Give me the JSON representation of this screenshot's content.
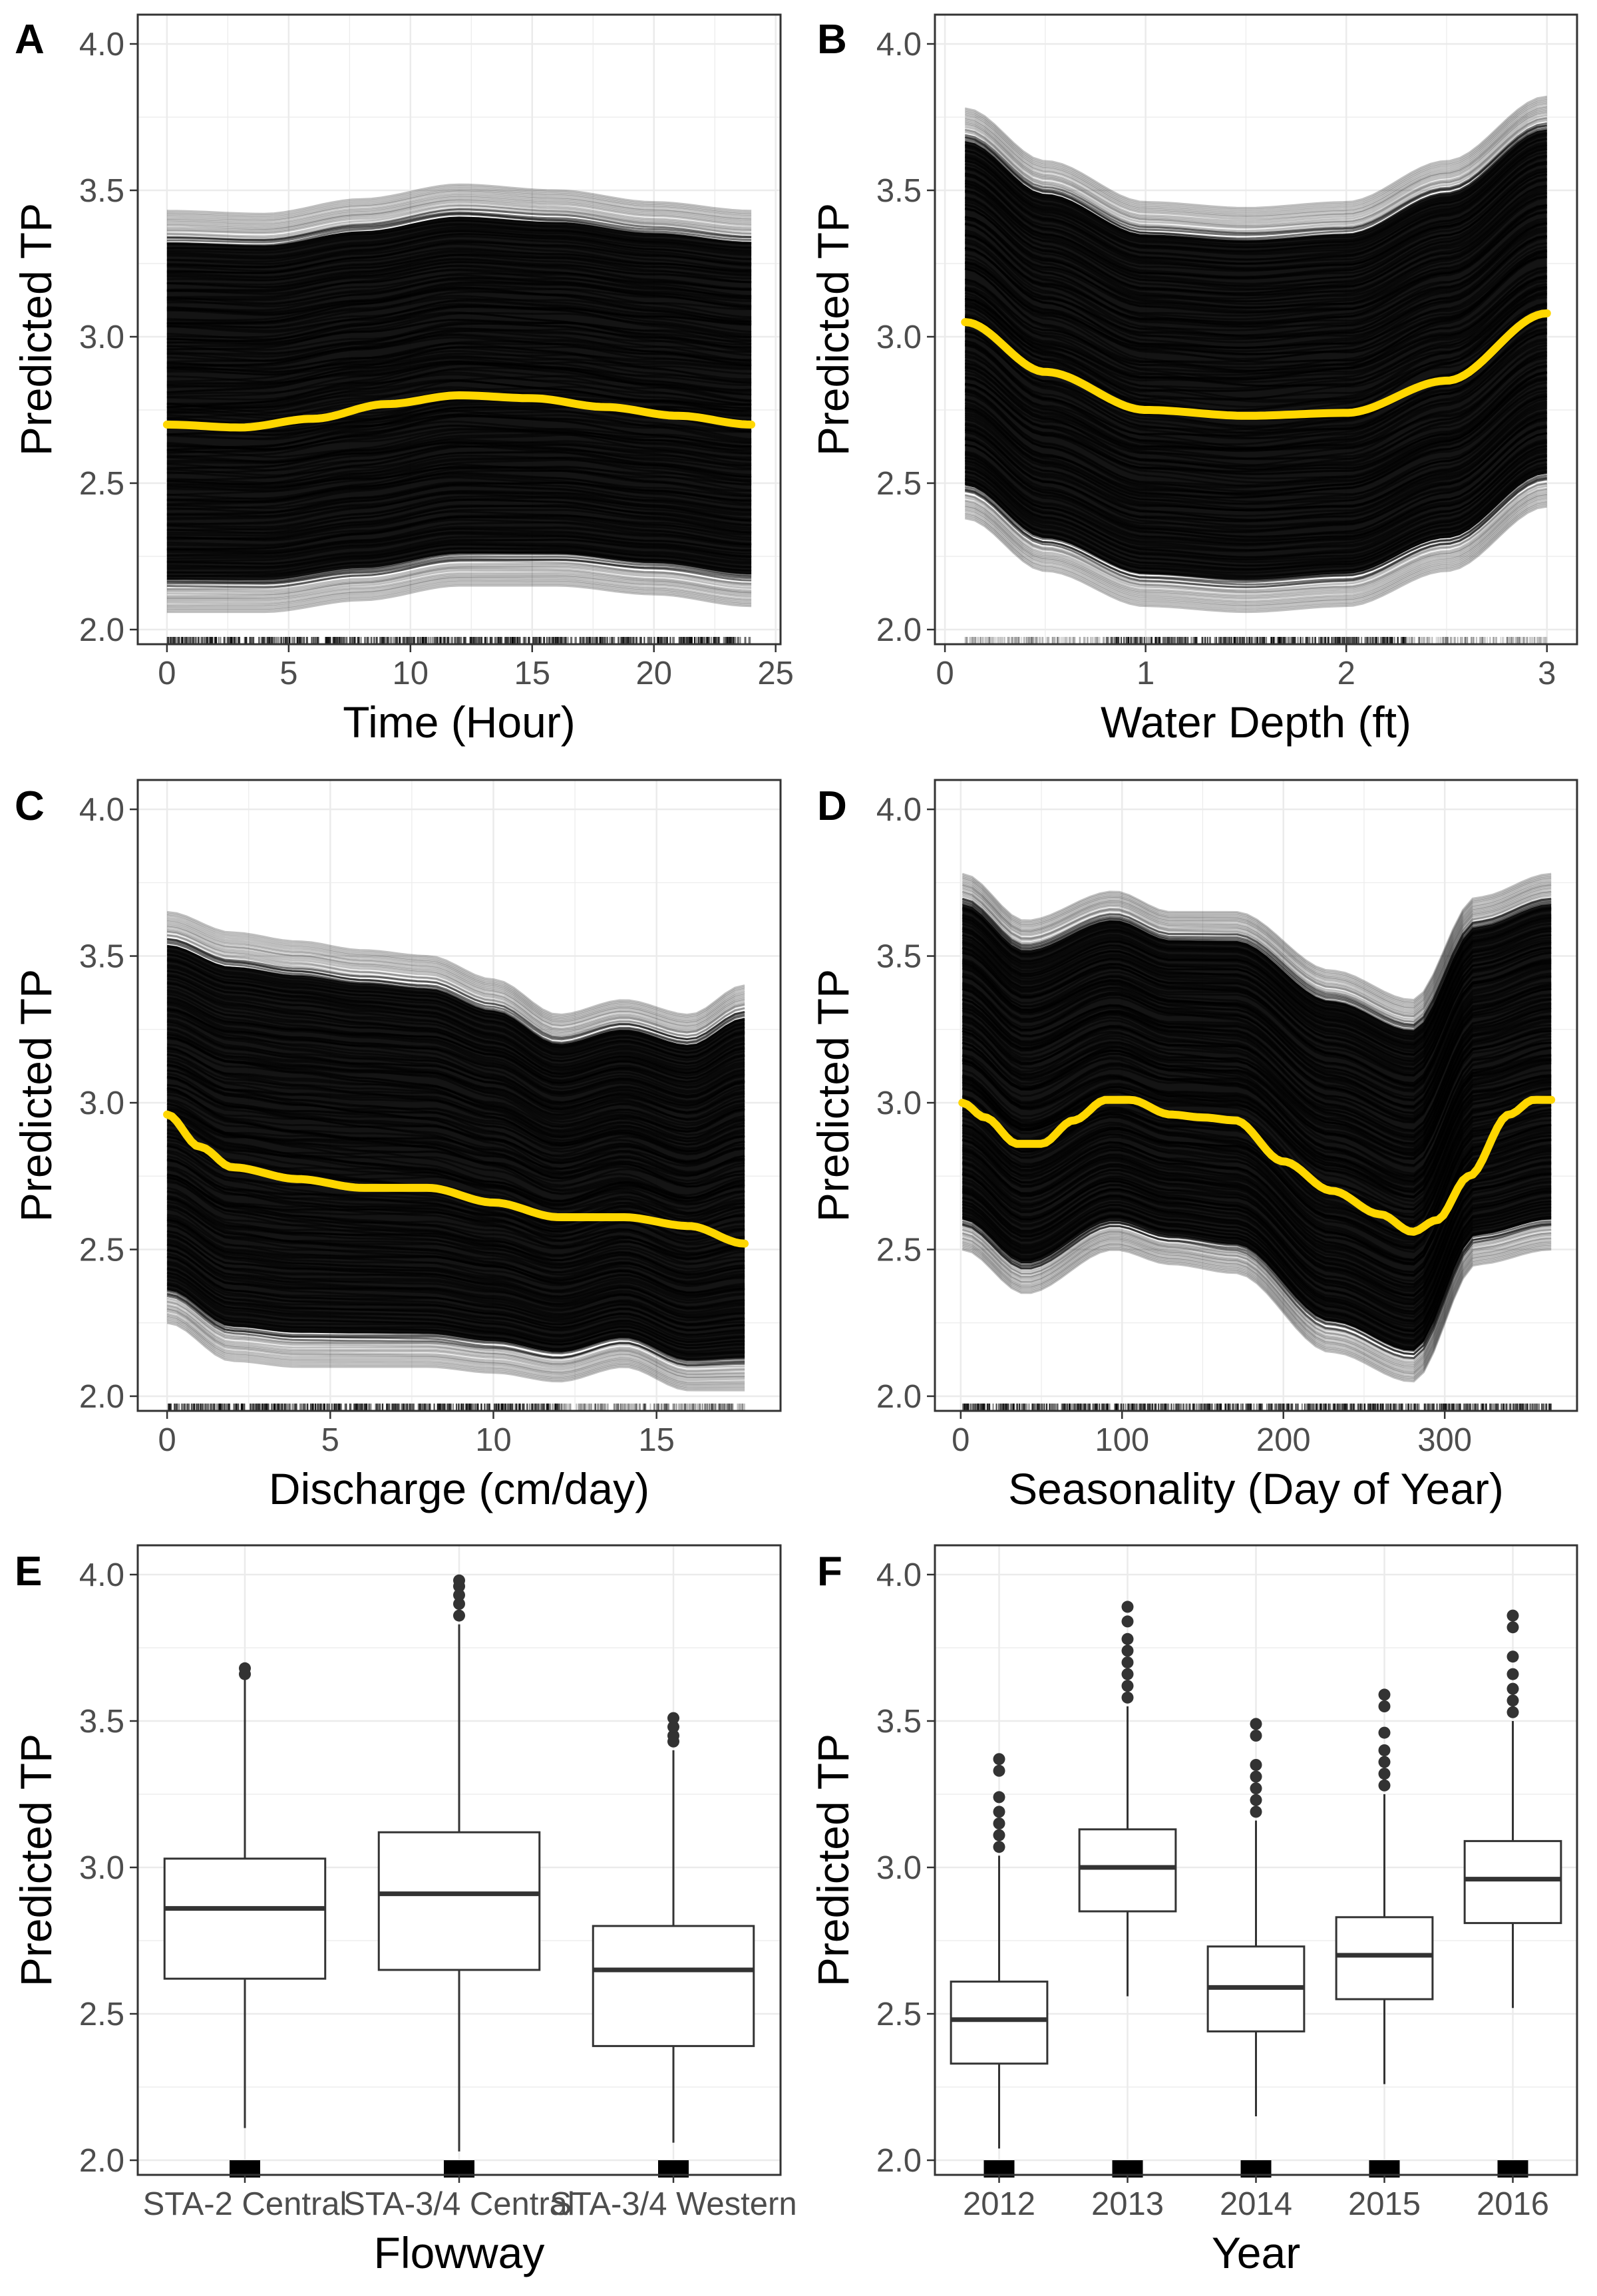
{
  "colors": {
    "pdp_line": "#FFD700",
    "ice_lines": "#000000",
    "grid": "#EBEBEB",
    "box_stroke": "#333333",
    "tick_text": "#4D4D4D"
  },
  "chart_data": [
    {
      "panel": "A",
      "type": "line",
      "xlabel": "Time (Hour)",
      "ylabel": "Predicted TP",
      "xlim": [
        -1.2,
        25.2
      ],
      "ylim": [
        1.95,
        4.1
      ],
      "xticks": [
        0,
        5,
        10,
        15,
        20,
        25
      ],
      "yticks": [
        2.0,
        2.5,
        3.0,
        3.5,
        4.0
      ],
      "ice_band": {
        "x": [
          0,
          4,
          8,
          12,
          16,
          20,
          24
        ],
        "lower": [
          2.06,
          2.06,
          2.1,
          2.15,
          2.15,
          2.12,
          2.08
        ],
        "upper": [
          3.43,
          3.42,
          3.47,
          3.52,
          3.5,
          3.46,
          3.43
        ]
      },
      "pdp": {
        "x": [
          0,
          3,
          6,
          9,
          12,
          15,
          18,
          21,
          24
        ],
        "y": [
          2.7,
          2.69,
          2.72,
          2.77,
          2.8,
          2.79,
          2.76,
          2.73,
          2.7
        ]
      },
      "rug": "dense over 0–24"
    },
    {
      "panel": "B",
      "type": "line",
      "xlabel": "Water Depth (ft)",
      "ylabel": "Predicted TP",
      "xlim": [
        -0.05,
        3.15
      ],
      "ylim": [
        1.95,
        4.1
      ],
      "xticks": [
        0,
        1,
        2,
        3
      ],
      "yticks": [
        2.0,
        2.5,
        3.0,
        3.5,
        4.0
      ],
      "ice_band": {
        "x": [
          0.1,
          0.5,
          1.0,
          1.5,
          2.0,
          2.5,
          3.0
        ],
        "lower": [
          2.38,
          2.2,
          2.08,
          2.06,
          2.08,
          2.2,
          2.42
        ],
        "upper": [
          3.78,
          3.6,
          3.46,
          3.44,
          3.46,
          3.6,
          3.82
        ]
      },
      "pdp": {
        "x": [
          0.1,
          0.5,
          1.0,
          1.5,
          2.0,
          2.5,
          3.0
        ],
        "y": [
          3.05,
          2.88,
          2.75,
          2.73,
          2.74,
          2.85,
          3.08
        ]
      },
      "rug": "sparse below 0.8, dense 0.8–2.3, sparse above"
    },
    {
      "panel": "C",
      "type": "line",
      "xlabel": "Discharge (cm/day)",
      "ylabel": "Predicted TP",
      "xlim": [
        -0.9,
        18.8
      ],
      "ylim": [
        1.95,
        4.1
      ],
      "xticks": [
        0,
        5,
        10,
        15
      ],
      "yticks": [
        2.0,
        2.5,
        3.0,
        3.5,
        4.0
      ],
      "ice_band": {
        "x": [
          0,
          2,
          4,
          6,
          8,
          10,
          12,
          14,
          16,
          17.7
        ],
        "lower": [
          2.25,
          2.12,
          2.1,
          2.1,
          2.1,
          2.08,
          2.05,
          2.1,
          2.02,
          2.02
        ],
        "upper": [
          3.65,
          3.58,
          3.55,
          3.52,
          3.5,
          3.42,
          3.3,
          3.35,
          3.3,
          3.4
        ]
      },
      "pdp": {
        "x": [
          0,
          1,
          2,
          4,
          6,
          8,
          10,
          12,
          14,
          16,
          17.7
        ],
        "y": [
          2.96,
          2.85,
          2.78,
          2.74,
          2.71,
          2.71,
          2.66,
          2.61,
          2.61,
          2.58,
          2.52
        ]
      },
      "rug": "dense 0–12, sparser to 17.7"
    },
    {
      "panel": "D",
      "type": "line",
      "xlabel": "Seasonality  (Day of Year)",
      "ylabel": "Predicted TP",
      "xlim": [
        -16,
        382
      ],
      "ylim": [
        1.95,
        4.1
      ],
      "xticks": [
        0,
        100,
        200,
        300
      ],
      "yticks": [
        2.0,
        2.5,
        3.0,
        3.5,
        4.0
      ],
      "ice_band": {
        "x": [
          1,
          40,
          95,
          130,
          170,
          230,
          280,
          320,
          366
        ],
        "lower": [
          2.5,
          2.35,
          2.5,
          2.45,
          2.42,
          2.15,
          2.05,
          2.45,
          2.5
        ],
        "upper": [
          3.78,
          3.62,
          3.72,
          3.65,
          3.65,
          3.45,
          3.35,
          3.7,
          3.78
        ]
      },
      "pdp": {
        "x": [
          1,
          15,
          35,
          50,
          70,
          90,
          105,
          130,
          150,
          170,
          200,
          230,
          260,
          280,
          295,
          315,
          340,
          355,
          366
        ],
        "y": [
          3.0,
          2.95,
          2.86,
          2.86,
          2.94,
          3.01,
          3.01,
          2.96,
          2.95,
          2.94,
          2.8,
          2.7,
          2.62,
          2.56,
          2.6,
          2.75,
          2.96,
          3.01,
          3.01
        ]
      },
      "rug": "dense over 1–366"
    },
    {
      "panel": "E",
      "type": "box",
      "xlabel": "Flowway",
      "ylabel": "Predicted TP",
      "ylim": [
        1.95,
        4.1
      ],
      "yticks": [
        2.0,
        2.5,
        3.0,
        3.5,
        4.0
      ],
      "categories": [
        "STA-2 Central",
        "STA-3/4 Central",
        "STA-3/4 Western"
      ],
      "boxes": [
        {
          "min": 2.11,
          "q1": 2.62,
          "median": 2.86,
          "q3": 3.03,
          "max": 3.64,
          "outliers": [
            3.66,
            3.68
          ]
        },
        {
          "min": 2.03,
          "q1": 2.65,
          "median": 2.91,
          "q3": 3.12,
          "max": 3.83,
          "outliers": [
            3.86,
            3.9,
            3.93,
            3.96,
            3.98
          ]
        },
        {
          "min": 2.06,
          "q1": 2.39,
          "median": 2.65,
          "q3": 2.8,
          "max": 3.4,
          "outliers": [
            3.43,
            3.45,
            3.48,
            3.51
          ]
        }
      ]
    },
    {
      "panel": "F",
      "type": "box",
      "xlabel": "Year",
      "ylabel": "Predicted TP",
      "ylim": [
        1.95,
        4.1
      ],
      "yticks": [
        2.0,
        2.5,
        3.0,
        3.5,
        4.0
      ],
      "categories": [
        "2012",
        "2013",
        "2014",
        "2015",
        "2016"
      ],
      "boxes": [
        {
          "min": 2.04,
          "q1": 2.33,
          "median": 2.48,
          "q3": 2.61,
          "max": 3.04,
          "outliers": [
            3.07,
            3.11,
            3.15,
            3.19,
            3.24,
            3.33,
            3.37
          ]
        },
        {
          "min": 2.56,
          "q1": 2.85,
          "median": 3.0,
          "q3": 3.13,
          "max": 3.55,
          "outliers": [
            3.58,
            3.62,
            3.66,
            3.7,
            3.74,
            3.78,
            3.84,
            3.89
          ]
        },
        {
          "min": 2.15,
          "q1": 2.44,
          "median": 2.59,
          "q3": 2.73,
          "max": 3.16,
          "outliers": [
            3.19,
            3.23,
            3.27,
            3.31,
            3.35,
            3.45,
            3.49
          ]
        },
        {
          "min": 2.26,
          "q1": 2.55,
          "median": 2.7,
          "q3": 2.83,
          "max": 3.25,
          "outliers": [
            3.28,
            3.32,
            3.36,
            3.4,
            3.46,
            3.55,
            3.59
          ]
        },
        {
          "min": 2.52,
          "q1": 2.81,
          "median": 2.96,
          "q3": 3.09,
          "max": 3.5,
          "outliers": [
            3.53,
            3.57,
            3.61,
            3.66,
            3.72,
            3.82,
            3.86
          ]
        }
      ]
    }
  ]
}
